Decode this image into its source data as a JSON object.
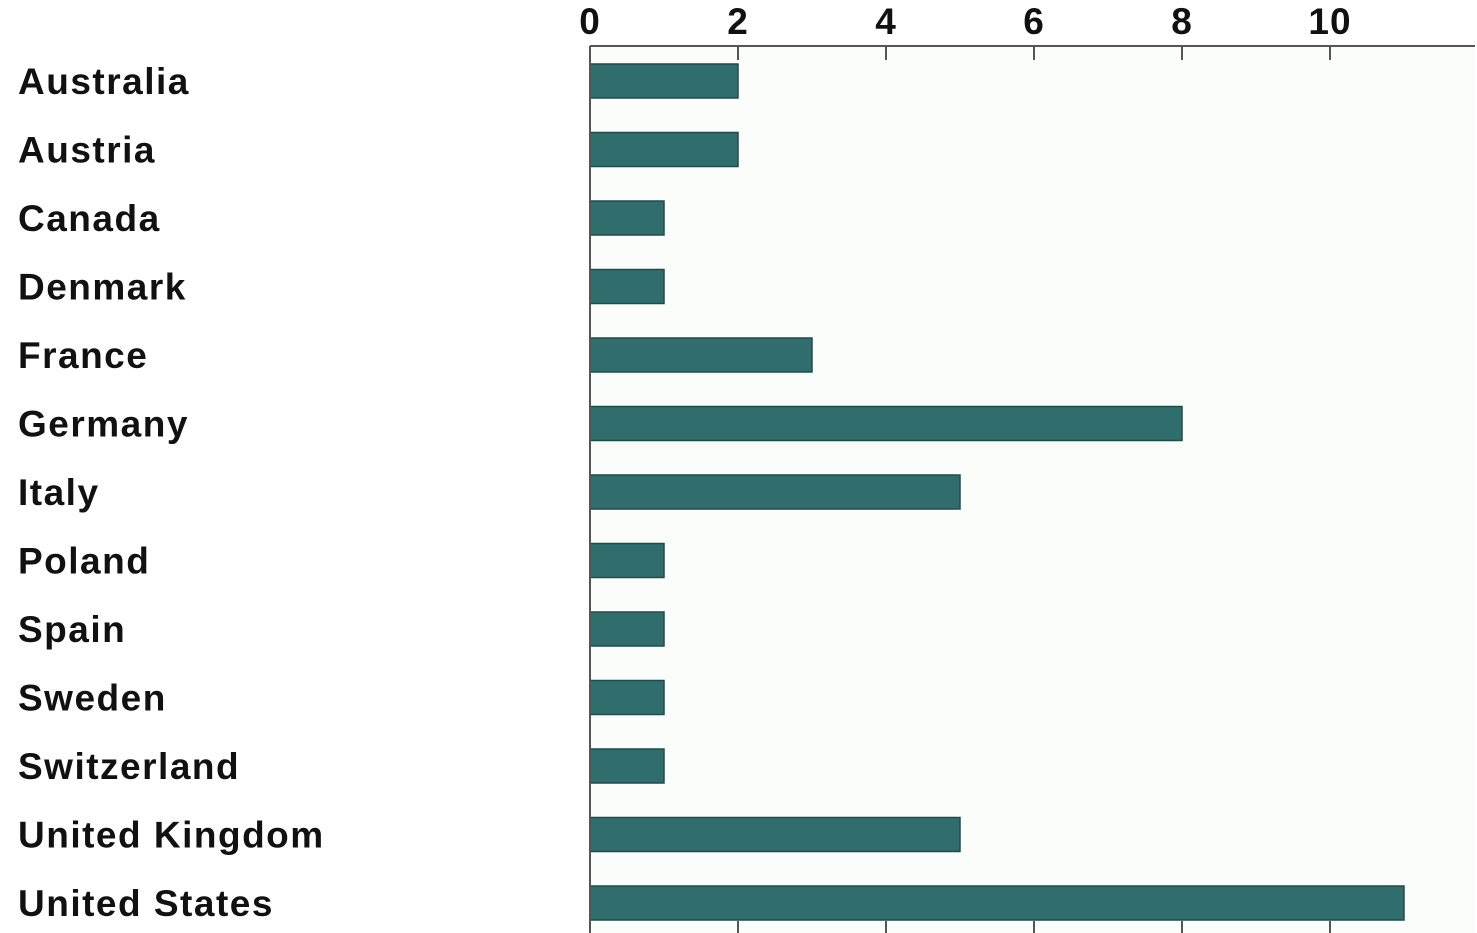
{
  "chart_data": {
    "type": "bar",
    "orientation": "horizontal",
    "categories": [
      "Australia",
      "Austria",
      "Canada",
      "Denmark",
      "France",
      "Germany",
      "Italy",
      "Poland",
      "Spain",
      "Sweden",
      "Switzerland",
      "United Kingdom",
      "United States"
    ],
    "values": [
      2,
      2,
      1,
      1,
      3,
      8,
      5,
      1,
      1,
      1,
      1,
      5,
      11
    ],
    "title": "",
    "xlabel": "",
    "ylabel": "",
    "xlim": [
      0,
      11.5
    ],
    "xticks": [
      0,
      2,
      4,
      6,
      8,
      10
    ],
    "x_axis_position": "top",
    "grid": false,
    "legend": "none",
    "colors": {
      "bar": "#2f6e6c",
      "bar_edge": "#1f4d4b",
      "plot_background": "#fbfdfb",
      "axis": "#555555",
      "text": "#111111"
    }
  }
}
